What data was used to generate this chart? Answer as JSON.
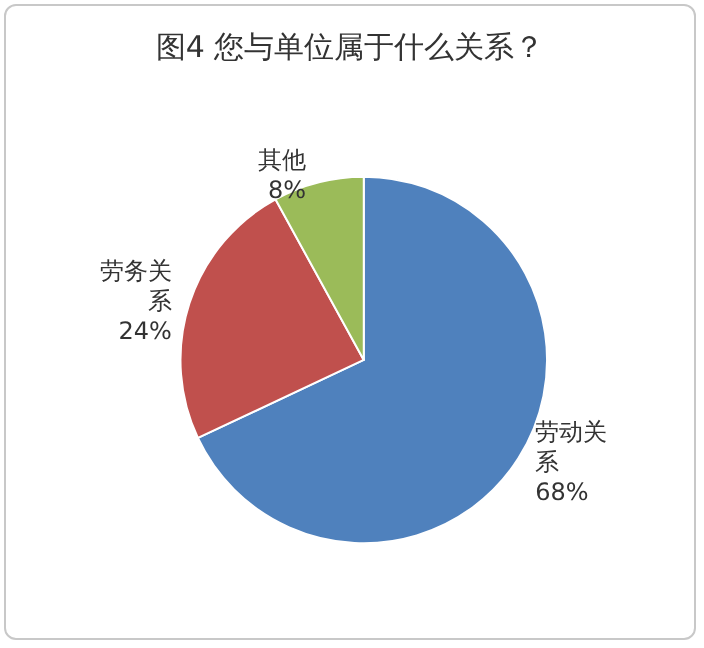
{
  "chart_data": {
    "type": "pie",
    "title": "图4 您与单位属于什么关系？",
    "categories": [
      "劳动关系",
      "劳务关系",
      "其他"
    ],
    "values": [
      68,
      24,
      8
    ],
    "value_labels": [
      "68%",
      "24%",
      "8%"
    ],
    "colors": [
      "#4f81bd",
      "#c0504d",
      "#9bbb59"
    ],
    "legend": false
  }
}
